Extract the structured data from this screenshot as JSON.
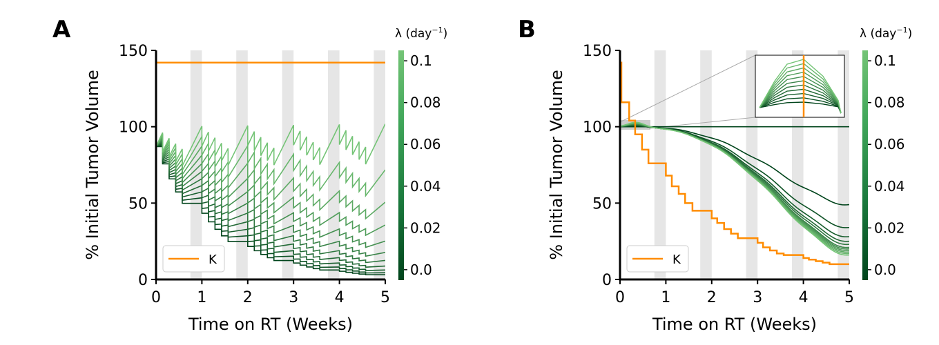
{
  "figure": {
    "panel_a_letter": "A",
    "panel_b_letter": "B",
    "colorbar_label_a": "λ (day",
    "colorbar_label_b": "λ (day",
    "colorbar_label_sup": "−1",
    "colorbar_label_close": ")"
  },
  "colors": {
    "carrying_capacity": "#ff8c00",
    "green_dark": "#00441b",
    "green_light": "#74c476",
    "shade": "#e6e6e6"
  },
  "chart_data": [
    {
      "panel": "A",
      "type": "line",
      "xlabel": "Time on RT (Weeks)",
      "ylabel": "% Initial Tumor Volume",
      "xlim": [
        0,
        5
      ],
      "ylim": [
        0,
        150
      ],
      "xticks": [
        "0",
        "1",
        "2",
        "3",
        "4",
        "5"
      ],
      "yticks": [
        "0",
        "50",
        "100",
        "150"
      ],
      "shaded_weekends": [
        [
          0.75,
          1.0
        ],
        [
          1.75,
          2.0
        ],
        [
          2.75,
          3.0
        ],
        [
          3.75,
          4.0
        ],
        [
          4.75,
          5.0
        ]
      ],
      "legend": {
        "position": "lower-left",
        "entries": [
          "K"
        ]
      },
      "K": {
        "name": "K",
        "value": 142
      },
      "lambda_values": [
        0.0,
        0.01,
        0.02,
        0.03,
        0.04,
        0.05,
        0.06,
        0.07,
        0.08,
        0.09,
        0.1
      ],
      "colorbar": {
        "ticks": [
          "0.0",
          "0.02",
          "0.04",
          "0.06",
          "0.08",
          "0.1"
        ],
        "range": [
          -0.005,
          0.105
        ]
      }
    },
    {
      "panel": "B",
      "type": "line",
      "xlabel": "Time on RT (Weeks)",
      "ylabel": "% Initial Tumor Volume",
      "xlim": [
        0,
        5
      ],
      "ylim": [
        0,
        150
      ],
      "xticks": [
        "0",
        "1",
        "2",
        "3",
        "4",
        "5"
      ],
      "yticks": [
        "0",
        "50",
        "100",
        "150"
      ],
      "shaded_weekends": [
        [
          0.75,
          1.0
        ],
        [
          1.75,
          2.0
        ],
        [
          2.75,
          3.0
        ],
        [
          3.75,
          4.0
        ],
        [
          4.75,
          5.0
        ]
      ],
      "legend": {
        "position": "lower-left",
        "entries": [
          "K"
        ]
      },
      "K_steps": {
        "name": "K",
        "x": [
          0,
          0.03,
          0.2,
          0.33,
          0.48,
          0.62,
          1.0,
          1.13,
          1.28,
          1.42,
          1.58,
          2.0,
          2.12,
          2.27,
          2.42,
          2.57,
          3.0,
          3.12,
          3.27,
          3.42,
          3.57,
          4.0,
          4.12,
          4.27,
          4.42,
          4.57,
          5.0
        ],
        "y": [
          142,
          116,
          104,
          95,
          85,
          76,
          68,
          61,
          56,
          50,
          45,
          40,
          37,
          33,
          30,
          27,
          24,
          21,
          19,
          17,
          16,
          14,
          13,
          12,
          11,
          10,
          10
        ]
      },
      "flat_line": 100,
      "endpoints_at_week5": [
        49,
        34,
        28,
        25,
        23,
        21,
        20,
        19,
        18,
        17,
        16
      ],
      "lambda_values": [
        0.0,
        0.01,
        0.02,
        0.03,
        0.04,
        0.05,
        0.06,
        0.07,
        0.08,
        0.09,
        0.1
      ],
      "inset": {
        "x_range": [
          0,
          0.6
        ],
        "y_range": [
          97,
          103
        ]
      },
      "colorbar": {
        "ticks": [
          "0.0",
          "0.02",
          "0.04",
          "0.06",
          "0.08",
          "0.1"
        ],
        "range": [
          -0.005,
          0.105
        ]
      }
    }
  ]
}
